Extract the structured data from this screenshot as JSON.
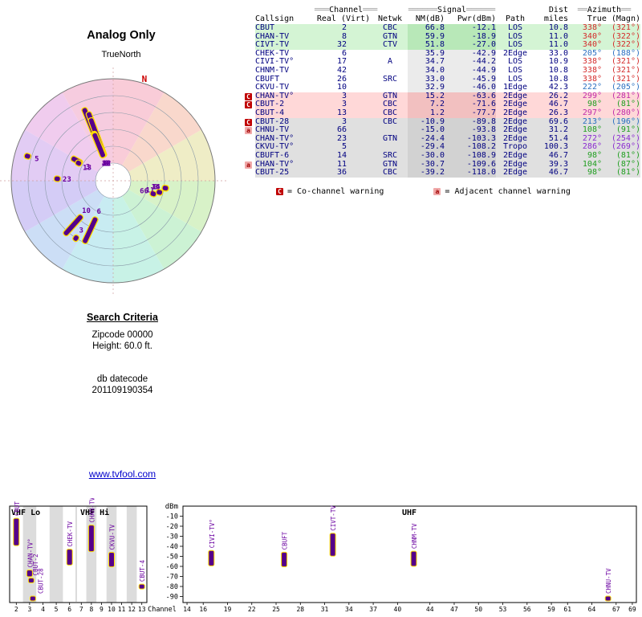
{
  "chart_data": [
    {
      "name": "station-table",
      "type": "table",
      "headers_top": [
        "",
        "═══Channel═══",
        "",
        "══════Signal══════",
        "",
        "Dist",
        "══Azimuth══"
      ],
      "headers": [
        "Callsign",
        "Real (Virt)",
        "Netwk",
        "NM(dB)",
        "Pwr(dBm)",
        "Path",
        "miles",
        "True (Magn)"
      ],
      "rows": [
        {
          "cs": "CBUT",
          "ch": 2,
          "net": "CBC",
          "nm": 66.8,
          "pwr": -12.1,
          "path": "LOS",
          "mi": 10.8,
          "azt": 338,
          "azm": 321,
          "tier": "g",
          "col": "#d42a2a",
          "warn": []
        },
        {
          "cs": "CHAN-TV",
          "ch": 8,
          "net": "GTN",
          "nm": 59.9,
          "pwr": -18.9,
          "path": "LOS",
          "mi": 11.0,
          "azt": 340,
          "azm": 322,
          "tier": "g",
          "col": "#d42a2a",
          "warn": []
        },
        {
          "cs": "CIVT-TV",
          "ch": 32,
          "net": "CTV",
          "nm": 51.8,
          "pwr": -27.0,
          "path": "LOS",
          "mi": 11.0,
          "azt": 340,
          "azm": 322,
          "tier": "g",
          "col": "#d42a2a",
          "warn": []
        },
        {
          "cs": "CHEK-TV",
          "ch": 6,
          "net": "",
          "nm": 35.9,
          "pwr": -42.9,
          "path": "2Edge",
          "mi": 33.0,
          "azt": 205,
          "azm": 188,
          "tier": "w",
          "col": "#2a6fc0",
          "warn": []
        },
        {
          "cs": "CIVI-TV°",
          "ch": 17,
          "net": "A",
          "nm": 34.7,
          "pwr": -44.2,
          "path": "LOS",
          "mi": 10.9,
          "azt": 338,
          "azm": 321,
          "tier": "w",
          "col": "#d42a2a",
          "warn": []
        },
        {
          "cs": "CHNM-TV",
          "ch": 42,
          "net": "",
          "nm": 34.0,
          "pwr": -44.9,
          "path": "LOS",
          "mi": 10.8,
          "azt": 338,
          "azm": 321,
          "tier": "w",
          "col": "#d42a2a",
          "warn": []
        },
        {
          "cs": "CBUFT",
          "ch": 26,
          "net": "SRC",
          "nm": 33.0,
          "pwr": -45.9,
          "path": "LOS",
          "mi": 10.8,
          "azt": 338,
          "azm": 321,
          "tier": "w",
          "col": "#d42a2a",
          "warn": []
        },
        {
          "cs": "CKVU-TV",
          "ch": 10,
          "net": "",
          "nm": 32.9,
          "pwr": -46.0,
          "path": "1Edge",
          "mi": 42.3,
          "azt": 222,
          "azm": 205,
          "tier": "w",
          "col": "#2a6fc0",
          "warn": []
        },
        {
          "cs": "CHAN-TV°",
          "ch": 3,
          "net": "GTN",
          "nm": 15.2,
          "pwr": -63.6,
          "path": "2Edge",
          "mi": 26.2,
          "azt": 299,
          "azm": 281,
          "tier": "p",
          "col": "#c02aa8",
          "warn": [
            "C"
          ]
        },
        {
          "cs": "CBUT-2",
          "ch": 3,
          "net": "CBC",
          "nm": 7.2,
          "pwr": -71.6,
          "path": "2Edge",
          "mi": 46.7,
          "azt": 98,
          "azm": 81,
          "tier": "p",
          "col": "#1f9e1f",
          "warn": [
            "C"
          ]
        },
        {
          "cs": "CBUT-4",
          "ch": 13,
          "net": "CBC",
          "nm": 1.2,
          "pwr": -77.7,
          "path": "2Edge",
          "mi": 26.3,
          "azt": 297,
          "azm": 280,
          "tier": "p",
          "col": "#c02aa8",
          "warn": []
        },
        {
          "cs": "CBUT-28",
          "ch": 3,
          "net": "CBC",
          "nm": -10.9,
          "pwr": -89.8,
          "path": "2Edge",
          "mi": 69.6,
          "azt": 213,
          "azm": 196,
          "tier": "x",
          "col": "#2a6fc0",
          "warn": [
            "C"
          ]
        },
        {
          "cs": "CHNU-TV",
          "ch": 66,
          "net": "",
          "nm": -15.0,
          "pwr": -93.8,
          "path": "2Edge",
          "mi": 31.2,
          "azt": 108,
          "azm": 91,
          "tier": "x",
          "col": "#1f9e1f",
          "warn": [
            "a"
          ]
        },
        {
          "cs": "CHAN-TV°",
          "ch": 23,
          "net": "GTN",
          "nm": -24.4,
          "pwr": -103.3,
          "path": "2Edge",
          "mi": 51.4,
          "azt": 272,
          "azm": 254,
          "tier": "x",
          "col": "#8a2ad0",
          "warn": []
        },
        {
          "cs": "CKVU-TV°",
          "ch": 5,
          "net": "",
          "nm": -29.4,
          "pwr": -108.2,
          "path": "Tropo",
          "mi": 100.3,
          "azt": 286,
          "azm": 269,
          "tier": "x",
          "col": "#8a2ad0",
          "warn": []
        },
        {
          "cs": "CBUFT-6",
          "ch": 14,
          "net": "SRC",
          "nm": -30.0,
          "pwr": -108.9,
          "path": "2Edge",
          "mi": 46.7,
          "azt": 98,
          "azm": 81,
          "tier": "x",
          "col": "#1f9e1f",
          "warn": []
        },
        {
          "cs": "CHAN-TV°",
          "ch": 11,
          "net": "GTN",
          "nm": -30.7,
          "pwr": -109.6,
          "path": "2Edge",
          "mi": 39.3,
          "azt": 104,
          "azm": 87,
          "tier": "x",
          "col": "#1f9e1f",
          "warn": [
            "a"
          ]
        },
        {
          "cs": "CBUT-25",
          "ch": 36,
          "net": "CBC",
          "nm": -39.2,
          "pwr": -118.0,
          "path": "2Edge",
          "mi": 46.7,
          "azt": 98,
          "azm": 81,
          "tier": "x",
          "col": "#1f9e1f",
          "warn": []
        }
      ]
    },
    {
      "name": "radar",
      "type": "scatter",
      "subtype": "polar-radar",
      "title": "Analog Only",
      "north_label": "TrueNorth",
      "magnetic_north_label": "N",
      "palette": [
        "#f9ccd8",
        "#f9d8cc",
        "#efedc6",
        "#d8f2c8",
        "#ccf2d4",
        "#c8f2e6",
        "#c8ecf2",
        "#ccdef6",
        "#d4ccf6",
        "#e2ccf4",
        "#f0ccee",
        "#f6ccdf"
      ],
      "note": "bars plotted from station-table rows: angle = True azimuth, bar length ~ NM(dB), radial position ~ miles; labels are real channel numbers"
    },
    {
      "name": "band-power",
      "type": "bar",
      "ylabel": "dBm",
      "xlabel": "Channel",
      "dbm_ticks": [
        -10,
        -20,
        -30,
        -40,
        -50,
        -60,
        -70,
        -80,
        -90
      ],
      "bands": [
        {
          "label": "VHF Lo",
          "lo": 2,
          "hi": 6
        },
        {
          "label": "VHF Hi",
          "lo": 7,
          "hi": 13
        },
        {
          "label": "UHF",
          "lo": 14,
          "hi": 69
        }
      ],
      "vhf_ticks": [
        2,
        3,
        4,
        5,
        6,
        7,
        8,
        9,
        10,
        11,
        12,
        13
      ],
      "uhf_ticks": [
        14,
        16,
        19,
        22,
        25,
        28,
        31,
        34,
        37,
        40,
        44,
        47,
        50,
        53,
        56,
        59,
        61,
        64,
        67,
        69
      ],
      "points_note": "bars: channel vs Pwr(dBm) from station-table, only signals stronger than -96 dBm visible"
    }
  ],
  "legend": {
    "co": {
      "symbol": "C",
      "text": "= Co-channel warning"
    },
    "adj": {
      "symbol": "a",
      "text": "= Adjacent channel warning"
    }
  },
  "search": {
    "heading": "Search Criteria",
    "zipcode": "Zipcode 00000",
    "height": "Height: 60.0 ft.",
    "datecode_label": "db datecode",
    "datecode": "201109190354"
  },
  "link": {
    "text": "www.tvfool.com"
  },
  "colors": {
    "bar_fill": "#55008a",
    "bar_stroke": "#ffdf00",
    "table_text": "#000080",
    "warn_co_bg": "#c00000",
    "warn_adj_bg": "#f0a8a8",
    "north_n": "#cc0000",
    "purple_label": "#6a00a0",
    "link": "#0000cc"
  },
  "tier_colors": {
    "g": [
      "#d4f4d4",
      "#b8e8b8"
    ],
    "w": [
      "#ffffff",
      "#ebebeb"
    ],
    "p": [
      "#ffd8d8",
      "#f2c0c0"
    ],
    "x": [
      "#e0e0e0",
      "#d2d2d2"
    ]
  }
}
